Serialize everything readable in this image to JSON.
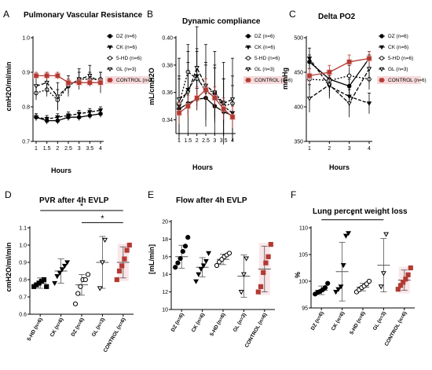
{
  "panels": [
    {
      "id": "A",
      "letter": "A",
      "type": "line",
      "title": "Pulmonary Vascular Resistance",
      "ylabel": "cmH2O/ml/min",
      "xlabel": "Hours",
      "x": [
        1,
        1.5,
        2,
        2.5,
        3,
        3.5,
        4
      ],
      "x_ticks": [
        "1",
        "1.5",
        "2",
        "2.5",
        "3",
        "3.5",
        "4"
      ],
      "ylim": [
        0.7,
        1.0
      ],
      "yticks": [
        "0.7",
        "0.8",
        "0.9",
        "1.0"
      ],
      "series": [
        {
          "name": "DZ (n=6)",
          "marker": "filled-circle",
          "color": "#000000",
          "dash": "",
          "values": [
            0.77,
            0.76,
            0.76,
            0.77,
            0.77,
            0.775,
            0.78
          ],
          "err": [
            0.01,
            0.01,
            0.01,
            0.01,
            0.01,
            0.01,
            0.01
          ]
        },
        {
          "name": "CK (n=6)",
          "marker": "filled-triangle",
          "color": "#000000",
          "dash": "4,2",
          "values": [
            0.77,
            0.765,
            0.77,
            0.775,
            0.78,
            0.785,
            0.79
          ],
          "err": [
            0.01,
            0.01,
            0.01,
            0.01,
            0.01,
            0.01,
            0.01
          ]
        },
        {
          "name": "5-HD (n=6)",
          "marker": "open-circle",
          "color": "#000000",
          "dash": "2,2",
          "values": [
            0.84,
            0.85,
            0.82,
            0.86,
            0.88,
            0.88,
            0.88
          ],
          "err": [
            0.02,
            0.02,
            0.03,
            0.02,
            0.02,
            0.02,
            0.02
          ]
        },
        {
          "name": "GL (n=3)",
          "marker": "open-triangle",
          "color": "#000000",
          "dash": "5,2",
          "values": [
            0.86,
            0.87,
            0.83,
            0.86,
            0.88,
            0.89,
            0.87
          ],
          "err": [
            0.03,
            0.03,
            0.04,
            0.03,
            0.03,
            0.03,
            0.03
          ]
        },
        {
          "name": "CONTROL (n=6)",
          "marker": "filled-square",
          "color": "#b23a32",
          "dash": "",
          "values": [
            0.89,
            0.89,
            0.89,
            0.87,
            0.87,
            0.87,
            0.87
          ],
          "err": [
            0.01,
            0.01,
            0.01,
            0.01,
            0.01,
            0.01,
            0.01
          ]
        }
      ]
    },
    {
      "id": "B",
      "letter": "B",
      "type": "line",
      "title": "Dynamic compliance",
      "ylabel": "mL/cmH2O",
      "xlabel": "Hours",
      "x": [
        1,
        1.5,
        2,
        2.5,
        3,
        3.5,
        4
      ],
      "x_ticks": [
        "1",
        "1.5",
        "2",
        "2.5",
        "3",
        "3.5",
        "4"
      ],
      "ylim": [
        0.33,
        0.4
      ],
      "yticks": [
        "0.34",
        "0.36",
        "0.38",
        "0.40"
      ],
      "series": [
        {
          "name": "DZ (n=6)",
          "marker": "filled-circle",
          "color": "#000000",
          "dash": "",
          "values": [
            0.348,
            0.352,
            0.355,
            0.356,
            0.35,
            0.346,
            0.343
          ],
          "err": [
            0.008,
            0.008,
            0.008,
            0.008,
            0.008,
            0.008,
            0.008
          ]
        },
        {
          "name": "CK (n=6)",
          "marker": "filled-triangle",
          "color": "#000000",
          "dash": "4,2",
          "values": [
            0.35,
            0.362,
            0.372,
            0.36,
            0.358,
            0.35,
            0.345
          ],
          "err": [
            0.02,
            0.02,
            0.02,
            0.02,
            0.02,
            0.02,
            0.02
          ]
        },
        {
          "name": "5-HD (n=6)",
          "marker": "open-circle",
          "color": "#000000",
          "dash": "2,2",
          "values": [
            0.352,
            0.375,
            0.37,
            0.362,
            0.36,
            0.35,
            0.352
          ],
          "err": [
            0.02,
            0.02,
            0.02,
            0.02,
            0.02,
            0.02,
            0.02
          ]
        },
        {
          "name": "GL (n=3)",
          "marker": "open-triangle",
          "color": "#000000",
          "dash": "5,2",
          "values": [
            0.355,
            0.36,
            0.378,
            0.365,
            0.36,
            0.352,
            0.355
          ],
          "err": [
            0.03,
            0.03,
            0.03,
            0.03,
            0.03,
            0.03,
            0.03
          ]
        },
        {
          "name": "CONTROL (n=6)",
          "marker": "filled-square",
          "color": "#b23a32",
          "dash": "",
          "values": [
            0.345,
            0.35,
            0.356,
            0.362,
            0.356,
            0.348,
            0.342
          ],
          "err": [
            0.008,
            0.008,
            0.008,
            0.008,
            0.008,
            0.008,
            0.008
          ]
        }
      ]
    },
    {
      "id": "C",
      "letter": "C",
      "type": "line",
      "title": "Delta PO2",
      "ylabel": "mmHg",
      "xlabel": "Hours",
      "x": [
        1,
        2,
        3,
        4
      ],
      "x_ticks": [
        "1",
        "2",
        "3",
        "4"
      ],
      "ylim": [
        350,
        500
      ],
      "yticks": [
        "350",
        "400",
        "450",
        "500"
      ],
      "series": [
        {
          "name": "DZ (n=6)",
          "marker": "filled-circle",
          "color": "#000000",
          "dash": "",
          "values": [
            465,
            440,
            430,
            470
          ],
          "err": [
            10,
            10,
            10,
            10
          ]
        },
        {
          "name": "CK (n=6)",
          "marker": "filled-triangle",
          "color": "#000000",
          "dash": "4,2",
          "values": [
            470,
            430,
            415,
            405
          ],
          "err": [
            15,
            15,
            15,
            15
          ]
        },
        {
          "name": "5-HD (n=6)",
          "marker": "open-circle",
          "color": "#000000",
          "dash": "2,2",
          "values": [
            440,
            438,
            445,
            440
          ],
          "err": [
            15,
            15,
            15,
            15
          ]
        },
        {
          "name": "GL (n=3)",
          "marker": "open-triangle",
          "color": "#000000",
          "dash": "5,2",
          "values": [
            412,
            432,
            405,
            455
          ],
          "err": [
            20,
            20,
            20,
            20
          ]
        },
        {
          "name": "CONTROL (n=6)",
          "marker": "filled-square",
          "color": "#b23a32",
          "dash": "",
          "values": [
            445,
            450,
            465,
            470
          ],
          "err": [
            10,
            10,
            10,
            10
          ]
        }
      ]
    },
    {
      "id": "D",
      "letter": "D",
      "type": "scatter",
      "title": "PVR after 4h EVLP",
      "ylabel": "cmH2O/ml/min",
      "xlabel": "",
      "categories": [
        "5-HD (n=6)",
        "CK (n=6)",
        "DZ (n=6)",
        "GL (n=3)",
        "CONTROL (n=6)"
      ],
      "ylim": [
        0.6,
        1.1
      ],
      "yticks": [
        "0.6",
        "0.7",
        "0.8",
        "0.9",
        "1.0",
        "1.1"
      ],
      "significance": [
        {
          "from": 0,
          "to": 4,
          "label": "*",
          "y": 1.2
        },
        {
          "from": 2,
          "to": 4,
          "label": "*",
          "y": 1.13
        }
      ],
      "groups": [
        {
          "marker": "filled-square",
          "color": "#000000",
          "mean": 0.78,
          "sd": 0.03,
          "points": [
            0.76,
            0.77,
            0.78,
            0.79,
            0.8,
            0.76
          ]
        },
        {
          "marker": "filled-triangle",
          "color": "#000000",
          "mean": 0.85,
          "sd": 0.07,
          "points": [
            0.78,
            0.82,
            0.84,
            0.86,
            0.88,
            0.9
          ]
        },
        {
          "marker": "open-circle",
          "color": "#000000",
          "mean": 0.77,
          "sd": 0.06,
          "points": [
            0.66,
            0.72,
            0.76,
            0.8,
            0.8,
            0.83
          ]
        },
        {
          "marker": "open-triangle",
          "color": "#000000",
          "mean": 0.9,
          "sd": 0.15,
          "points": [
            0.75,
            0.9,
            1.03
          ]
        },
        {
          "marker": "filled-square",
          "color": "#b23a32",
          "mean": 0.9,
          "sd": 0.09,
          "points": [
            0.8,
            0.85,
            0.88,
            0.92,
            0.97,
            1.0
          ]
        }
      ]
    },
    {
      "id": "E",
      "letter": "E",
      "type": "scatter",
      "title": "Flow after 4h EVLP",
      "ylabel": "[mL/min]",
      "xlabel": "",
      "categories": [
        "DZ (n=6)",
        "CK (n=6)",
        "5-HD (n=6)",
        "GL (n=3)",
        "CONTROL (n=6)"
      ],
      "ylim": [
        10,
        20
      ],
      "yticks": [
        "10",
        "12",
        "14",
        "16",
        "18",
        "20"
      ],
      "significance": [],
      "groups": [
        {
          "marker": "filled-circle",
          "color": "#000000",
          "mean": 16,
          "sd": 1.3,
          "points": [
            14.8,
            15.3,
            15.8,
            16.6,
            17.2,
            18.2
          ]
        },
        {
          "marker": "filled-triangle",
          "color": "#000000",
          "mean": 14.8,
          "sd": 1.1,
          "points": [
            13.2,
            14.0,
            14.6,
            15.0,
            15.5,
            16.4
          ]
        },
        {
          "marker": "open-circle",
          "color": "#000000",
          "mean": 15.7,
          "sd": 0.6,
          "points": [
            15.0,
            15.4,
            15.7,
            16.0,
            16.2,
            16.4
          ]
        },
        {
          "marker": "open-triangle",
          "color": "#000000",
          "mean": 13.8,
          "sd": 2.4,
          "points": [
            12.0,
            14.0,
            15.8
          ]
        },
        {
          "marker": "filled-square",
          "color": "#b23a32",
          "mean": 14.6,
          "sd": 2.6,
          "points": [
            12.0,
            12.6,
            14.2,
            15.3,
            16.0,
            17.4
          ]
        }
      ]
    },
    {
      "id": "F",
      "letter": "F",
      "type": "scatter",
      "title": "Lung percent weight loss",
      "ylabel": "%",
      "xlabel": "",
      "categories": [
        "DZ (n=6)",
        "CK (n=6)",
        "5-HD (n=6)",
        "GL (n=3)",
        "CONTROL (n=6)"
      ],
      "ylim": [
        95,
        110
      ],
      "yticks": [
        "95",
        "100",
        "105",
        "110"
      ],
      "significance": [
        {
          "from": 0,
          "to": 3,
          "label": "*",
          "y": 111.5
        }
      ],
      "groups": [
        {
          "marker": "filled-circle",
          "color": "#000000",
          "mean": 98.3,
          "sd": 0.8,
          "points": [
            97.6,
            97.9,
            98.1,
            98.4,
            98.8,
            99.6
          ]
        },
        {
          "marker": "filled-triangle",
          "color": "#000000",
          "mean": 101.8,
          "sd": 5.5,
          "points": [
            98.0,
            98.5,
            99.0,
            103.0,
            108.5,
            109.0
          ]
        },
        {
          "marker": "open-circle",
          "color": "#000000",
          "mean": 98.9,
          "sd": 0.7,
          "points": [
            98.0,
            98.4,
            98.8,
            99.1,
            99.5,
            100.0
          ]
        },
        {
          "marker": "open-triangle",
          "color": "#000000",
          "mean": 103,
          "sd": 5.0,
          "points": [
            99.0,
            101.5,
            108.8
          ]
        },
        {
          "marker": "filled-square",
          "color": "#b23a32",
          "mean": 100.2,
          "sd": 1.9,
          "points": [
            98.5,
            99.2,
            99.8,
            100.4,
            101.2,
            102.5
          ]
        }
      ]
    }
  ]
}
